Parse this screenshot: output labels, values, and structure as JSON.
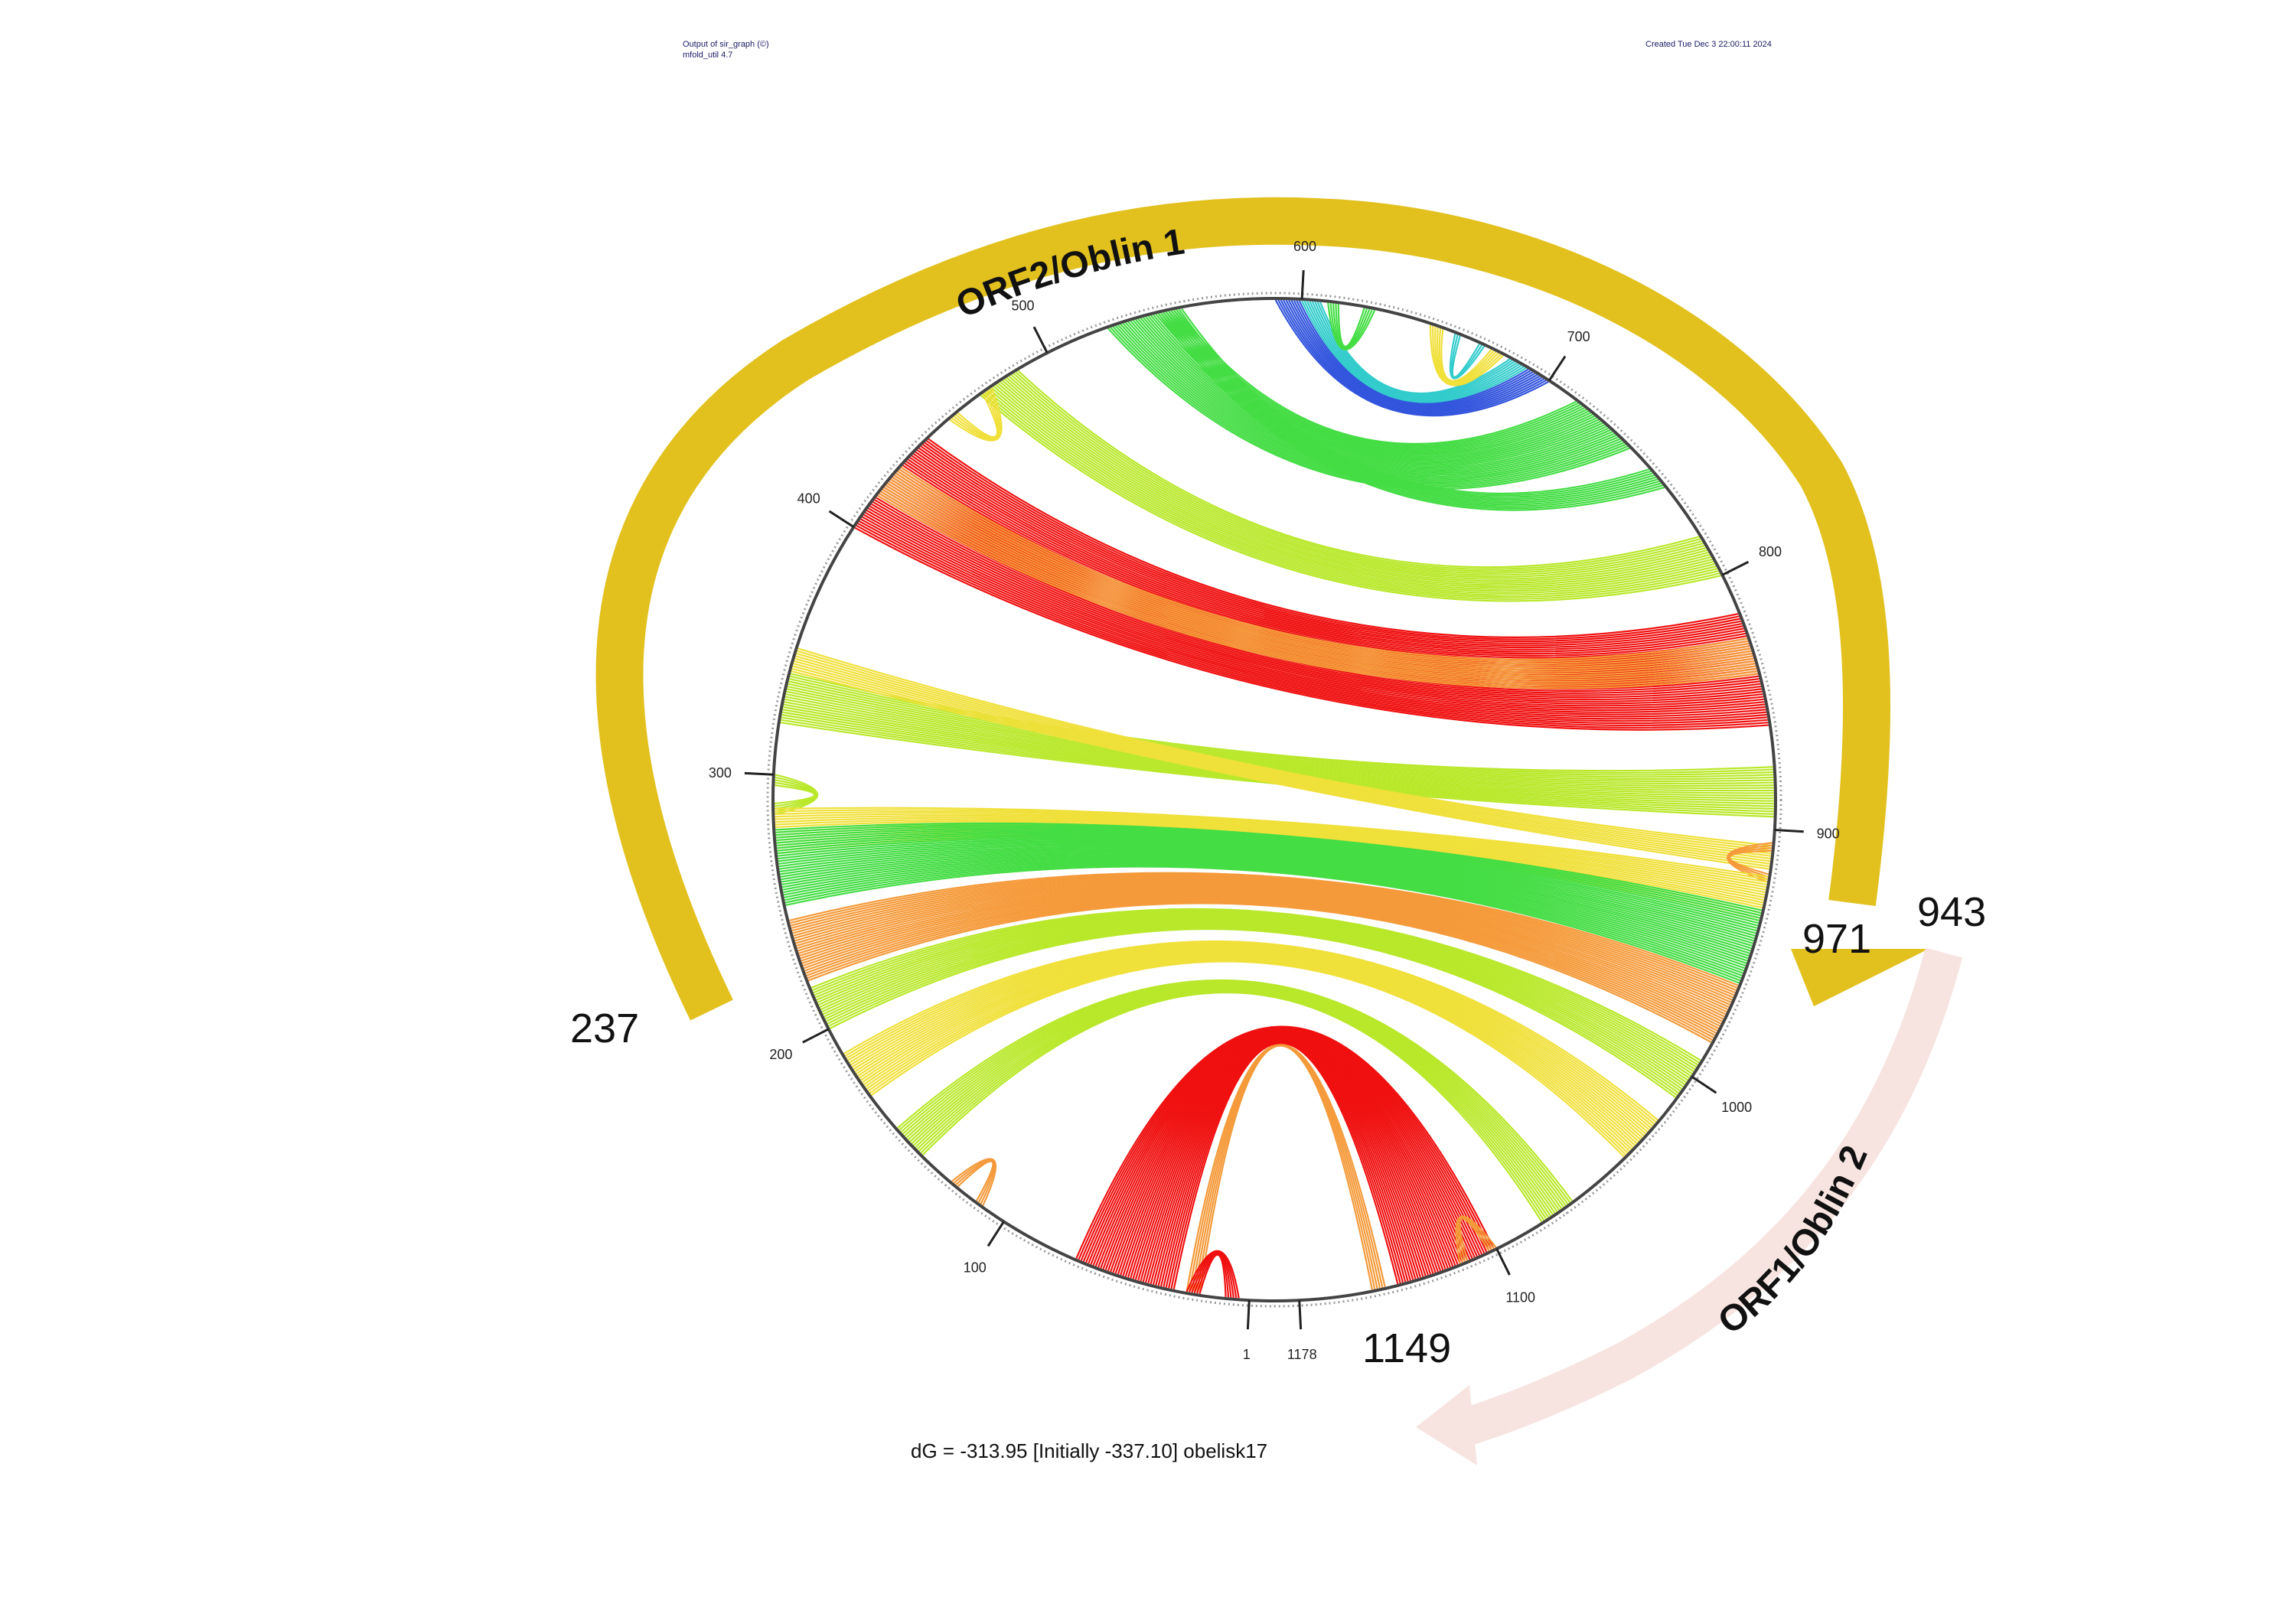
{
  "header": {
    "left_line1": "Output of sir_graph (©)",
    "left_line2": "mfold_util 4.7",
    "right": "Created Tue Dec  3 22:00:11 2024"
  },
  "circle": {
    "ticks": [
      {
        "label": "1",
        "pos": 1
      },
      {
        "label": "100",
        "pos": 100
      },
      {
        "label": "200",
        "pos": 200
      },
      {
        "label": "300",
        "pos": 300
      },
      {
        "label": "400",
        "pos": 400
      },
      {
        "label": "500",
        "pos": 500
      },
      {
        "label": "600",
        "pos": 600
      },
      {
        "label": "700",
        "pos": 700
      },
      {
        "label": "800",
        "pos": 800
      },
      {
        "label": "900",
        "pos": 900
      },
      {
        "label": "1000",
        "pos": 1000
      },
      {
        "label": "1100",
        "pos": 1100
      },
      {
        "label": "1178",
        "pos": 1178
      }
    ],
    "length": 1178
  },
  "arcs": [
    {
      "name": "ORF2/Oblin 1",
      "color": "#e2c11e",
      "start_label": "237",
      "end_label": "971"
    },
    {
      "name": "ORF1/Oblin 2",
      "color": "#f7e4e0",
      "start_label": "943",
      "end_label": "1149"
    }
  ],
  "energy": "dG = -313.95 [Initially -337.10] obelisk17",
  "colors": {
    "red": "#f01010",
    "orange": "#f59a3a",
    "yellow": "#f0e03a",
    "lime": "#b9e82a",
    "green": "#44dd44",
    "blue": "#3355dd",
    "cyan": "#33cccc"
  }
}
